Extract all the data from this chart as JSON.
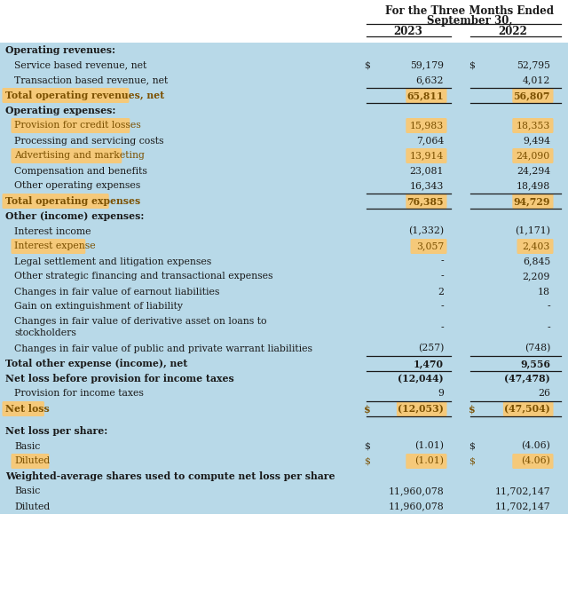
{
  "title_line1": "For the Three Months Ended",
  "title_line2": "September 30,",
  "col_2023": "2023",
  "col_2022": "2022",
  "bg_light_blue": "#b8d9e8",
  "highlight_orange": "#f5c97a",
  "white": "#ffffff",
  "dark_text": "#1a1a1a",
  "brown_text": "#7b5000",
  "rows": [
    {
      "label": "Operating revenues:",
      "val2023": "",
      "val2022": "",
      "style": "section_header",
      "indent": 0,
      "dollar2023": false,
      "dollar2022": false,
      "line_below": false,
      "multiline": false
    },
    {
      "label": "Service based revenue, net",
      "val2023": "59,179",
      "val2022": "52,795",
      "style": "normal",
      "indent": 1,
      "dollar2023": true,
      "dollar2022": true,
      "line_below": false,
      "multiline": false
    },
    {
      "label": "Transaction based revenue, net",
      "val2023": "6,632",
      "val2022": "4,012",
      "style": "normal",
      "indent": 1,
      "dollar2023": false,
      "dollar2022": false,
      "line_below": true,
      "multiline": false
    },
    {
      "label": "Total operating revenues, net",
      "val2023": "65,811",
      "val2022": "56,807",
      "style": "highlight_bold",
      "indent": 0,
      "dollar2023": false,
      "dollar2022": false,
      "line_below": true,
      "multiline": false
    },
    {
      "label": "Operating expenses:",
      "val2023": "",
      "val2022": "",
      "style": "section_header",
      "indent": 0,
      "dollar2023": false,
      "dollar2022": false,
      "line_below": false,
      "multiline": false
    },
    {
      "label": "Provision for credit losses",
      "val2023": "15,983",
      "val2022": "18,353",
      "style": "highlight_normal",
      "indent": 1,
      "dollar2023": false,
      "dollar2022": false,
      "line_below": false,
      "multiline": false
    },
    {
      "label": "Processing and servicing costs",
      "val2023": "7,064",
      "val2022": "9,494",
      "style": "normal",
      "indent": 1,
      "dollar2023": false,
      "dollar2022": false,
      "line_below": false,
      "multiline": false
    },
    {
      "label": "Advertising and marketing",
      "val2023": "13,914",
      "val2022": "24,090",
      "style": "highlight_normal",
      "indent": 1,
      "dollar2023": false,
      "dollar2022": false,
      "line_below": false,
      "multiline": false
    },
    {
      "label": "Compensation and benefits",
      "val2023": "23,081",
      "val2022": "24,294",
      "style": "normal",
      "indent": 1,
      "dollar2023": false,
      "dollar2022": false,
      "line_below": false,
      "multiline": false
    },
    {
      "label": "Other operating expenses",
      "val2023": "16,343",
      "val2022": "18,498",
      "style": "normal",
      "indent": 1,
      "dollar2023": false,
      "dollar2022": false,
      "line_below": true,
      "multiline": false
    },
    {
      "label": "Total operating expenses",
      "val2023": "76,385",
      "val2022": "94,729",
      "style": "highlight_bold",
      "indent": 0,
      "dollar2023": false,
      "dollar2022": false,
      "line_below": true,
      "multiline": false
    },
    {
      "label": "Other (income) expenses:",
      "val2023": "",
      "val2022": "",
      "style": "section_header",
      "indent": 0,
      "dollar2023": false,
      "dollar2022": false,
      "line_below": false,
      "multiline": false
    },
    {
      "label": "Interest income",
      "val2023": "(1,332)",
      "val2022": "(1,171)",
      "style": "normal",
      "indent": 1,
      "dollar2023": false,
      "dollar2022": false,
      "line_below": false,
      "multiline": false
    },
    {
      "label": "Interest expense",
      "val2023": "3,057",
      "val2022": "2,403",
      "style": "highlight_normal",
      "indent": 1,
      "dollar2023": false,
      "dollar2022": false,
      "line_below": false,
      "multiline": false
    },
    {
      "label": "Legal settlement and litigation expenses",
      "val2023": "-",
      "val2022": "6,845",
      "style": "normal",
      "indent": 1,
      "dollar2023": false,
      "dollar2022": false,
      "line_below": false,
      "multiline": false
    },
    {
      "label": "Other strategic financing and transactional expenses",
      "val2023": "-",
      "val2022": "2,209",
      "style": "normal",
      "indent": 1,
      "dollar2023": false,
      "dollar2022": false,
      "line_below": false,
      "multiline": false
    },
    {
      "label": "Changes in fair value of earnout liabilities",
      "val2023": "2",
      "val2022": "18",
      "style": "normal",
      "indent": 1,
      "dollar2023": false,
      "dollar2022": false,
      "line_below": false,
      "multiline": false
    },
    {
      "label": "Gain on extinguishment of liability",
      "val2023": "-",
      "val2022": "-",
      "style": "normal",
      "indent": 1,
      "dollar2023": false,
      "dollar2022": false,
      "line_below": false,
      "multiline": false
    },
    {
      "label": "Changes in fair value of derivative asset on loans to stockholders",
      "val2023": "-",
      "val2022": "-",
      "style": "normal",
      "indent": 1,
      "dollar2023": false,
      "dollar2022": false,
      "line_below": false,
      "multiline": true
    },
    {
      "label": "Changes in fair value of public and private warrant liabilities",
      "val2023": "(257)",
      "val2022": "(748)",
      "style": "normal",
      "indent": 1,
      "dollar2023": false,
      "dollar2022": false,
      "line_below": true,
      "multiline": false
    },
    {
      "label": "Total other expense (income), net",
      "val2023": "1,470",
      "val2022": "9,556",
      "style": "bold_normal",
      "indent": 0,
      "dollar2023": false,
      "dollar2022": false,
      "line_below": true,
      "multiline": false
    },
    {
      "label": "Net loss before provision for income taxes",
      "val2023": "(12,044)",
      "val2022": "(47,478)",
      "style": "bold_normal",
      "indent": 0,
      "dollar2023": false,
      "dollar2022": false,
      "line_below": false,
      "multiline": false
    },
    {
      "label": "Provision for income taxes",
      "val2023": "9",
      "val2022": "26",
      "style": "normal",
      "indent": 1,
      "dollar2023": false,
      "dollar2022": false,
      "line_below": true,
      "multiline": false
    },
    {
      "label": "Net loss",
      "val2023": "(12,053)",
      "val2022": "(47,504)",
      "style": "highlight_bold",
      "indent": 0,
      "dollar2023": true,
      "dollar2022": true,
      "line_below": true,
      "multiline": false
    },
    {
      "label": "",
      "val2023": "",
      "val2022": "",
      "style": "spacer",
      "indent": 0,
      "dollar2023": false,
      "dollar2022": false,
      "line_below": false,
      "multiline": false
    },
    {
      "label": "Net loss per share:",
      "val2023": "",
      "val2022": "",
      "style": "section_header",
      "indent": 0,
      "dollar2023": false,
      "dollar2022": false,
      "line_below": false,
      "multiline": false
    },
    {
      "label": "Basic",
      "val2023": "(1.01)",
      "val2022": "(4.06)",
      "style": "normal",
      "indent": 1,
      "dollar2023": true,
      "dollar2022": true,
      "line_below": false,
      "multiline": false
    },
    {
      "label": "Diluted",
      "val2023": "(1.01)",
      "val2022": "(4.06)",
      "style": "highlight_normal",
      "indent": 1,
      "dollar2023": true,
      "dollar2022": true,
      "line_below": false,
      "multiline": false
    },
    {
      "label": "Weighted-average shares used to compute net loss per share",
      "val2023": "",
      "val2022": "",
      "style": "section_header",
      "indent": 0,
      "dollar2023": false,
      "dollar2022": false,
      "line_below": false,
      "multiline": false
    },
    {
      "label": "Basic",
      "val2023": "11,960,078",
      "val2022": "11,702,147",
      "style": "normal",
      "indent": 1,
      "dollar2023": false,
      "dollar2022": false,
      "line_below": false,
      "multiline": false
    },
    {
      "label": "Diluted",
      "val2023": "11,960,078",
      "val2022": "11,702,147",
      "style": "normal",
      "indent": 1,
      "dollar2023": false,
      "dollar2022": false,
      "line_below": false,
      "multiline": false
    }
  ]
}
